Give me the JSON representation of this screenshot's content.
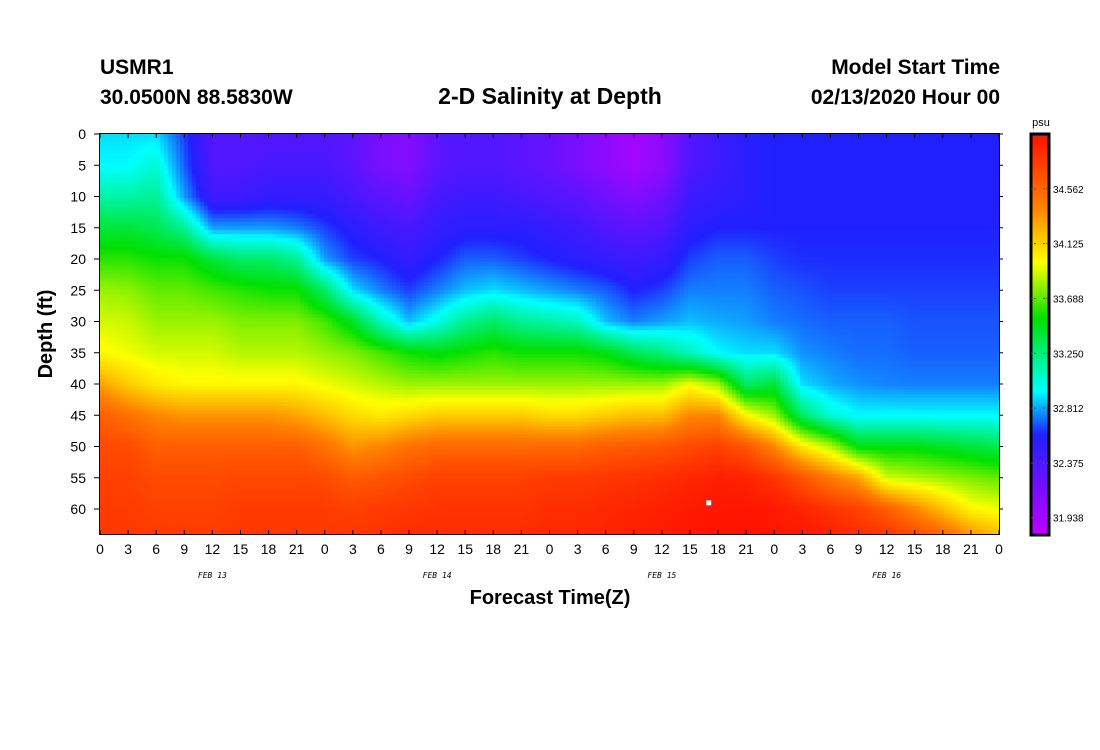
{
  "header": {
    "station": "USMR1",
    "coords": "30.0500N 88.5830W",
    "title": "2-D Salinity at Depth",
    "model_start_label": "Model Start Time",
    "model_start_date": "02/13/2020 Hour 00"
  },
  "chart_data": {
    "type": "heatmap",
    "title": "2-D Salinity at Depth",
    "xlabel": "Forecast Time(Z)",
    "ylabel": "Depth (ft)",
    "x_unit": "hours since model start (02/13/2020 00Z)",
    "xlim": [
      0,
      96
    ],
    "ylim": [
      0,
      64
    ],
    "y_inverted": true,
    "x_ticks": [
      0,
      3,
      6,
      9,
      12,
      15,
      18,
      21,
      24,
      27,
      30,
      33,
      36,
      39,
      42,
      45,
      48,
      51,
      54,
      57,
      60,
      63,
      66,
      69,
      72,
      75,
      78,
      81,
      84,
      87,
      90,
      93,
      96
    ],
    "x_tick_labels": [
      "0",
      "3",
      "6",
      "9",
      "12",
      "15",
      "18",
      "21",
      "0",
      "3",
      "6",
      "9",
      "12",
      "15",
      "18",
      "21",
      "0",
      "3",
      "6",
      "9",
      "12",
      "15",
      "18",
      "21",
      "0",
      "3",
      "6",
      "9",
      "12",
      "15",
      "18",
      "21",
      "0"
    ],
    "day_labels": [
      {
        "x": 12,
        "label": "FEB 13"
      },
      {
        "x": 36,
        "label": "FEB 14"
      },
      {
        "x": 60,
        "label": "FEB 15"
      },
      {
        "x": 84,
        "label": "FEB 16"
      }
    ],
    "y_ticks": [
      0,
      5,
      10,
      15,
      20,
      25,
      30,
      35,
      40,
      45,
      50,
      55,
      60
    ],
    "y_tick_labels": [
      "0",
      "5",
      "10",
      "15",
      "20",
      "25",
      "30",
      "35",
      "40",
      "45",
      "50",
      "55",
      "60"
    ],
    "colorbar": {
      "unit": "psu",
      "min": 31.8,
      "max": 35.0,
      "tick_values": [
        34.562,
        34.125,
        33.688,
        33.25,
        32.812,
        32.375,
        31.938
      ],
      "tick_labels": [
        "34.562",
        "34.125",
        "33.688",
        "33.250",
        "32.812",
        "32.375",
        "31.938"
      ],
      "colors": [
        "#c000ff",
        "#2020ff",
        "#00ffff",
        "#00e000",
        "#ffff00",
        "#ff8000",
        "#ff1000"
      ],
      "stops": [
        0,
        0.25,
        0.36,
        0.54,
        0.68,
        0.82,
        1
      ]
    },
    "profile_times": [
      0,
      3,
      6,
      9,
      12,
      15,
      18,
      21,
      24,
      27,
      30,
      33,
      36,
      39,
      42,
      45,
      48,
      51,
      54,
      57,
      60,
      63,
      66,
      69,
      72,
      75,
      78,
      81,
      84,
      87,
      90,
      93,
      96
    ],
    "profile_depths": [
      0,
      5,
      10,
      15,
      20,
      25,
      30,
      35,
      40,
      45,
      50,
      55,
      60,
      64
    ],
    "salinity_psu": [
      [
        32.9,
        32.95,
        33.15,
        33.4,
        33.6,
        33.8,
        33.9,
        34.0,
        34.3,
        34.6,
        34.7,
        34.75,
        34.78,
        34.8
      ],
      [
        32.9,
        32.95,
        33.15,
        33.4,
        33.6,
        33.78,
        33.88,
        33.95,
        34.15,
        34.5,
        34.7,
        34.75,
        34.78,
        34.8
      ],
      [
        32.9,
        33.05,
        33.2,
        33.35,
        33.55,
        33.7,
        33.8,
        33.9,
        34.05,
        34.4,
        34.6,
        34.7,
        34.75,
        34.78
      ],
      [
        32.65,
        32.7,
        32.8,
        33.2,
        33.55,
        33.7,
        33.8,
        33.9,
        34.0,
        34.35,
        34.6,
        34.7,
        34.75,
        34.78
      ],
      [
        32.35,
        32.35,
        32.45,
        32.8,
        33.4,
        33.65,
        33.8,
        33.9,
        34.0,
        34.35,
        34.6,
        34.7,
        34.75,
        34.78
      ],
      [
        32.35,
        32.35,
        32.45,
        32.8,
        33.3,
        33.6,
        33.75,
        33.85,
        34.0,
        34.35,
        34.6,
        34.72,
        34.78,
        34.8
      ],
      [
        32.35,
        32.4,
        32.5,
        32.8,
        33.3,
        33.55,
        33.75,
        33.85,
        34.0,
        34.35,
        34.6,
        34.72,
        34.78,
        34.8
      ],
      [
        32.35,
        32.4,
        32.5,
        32.75,
        33.2,
        33.55,
        33.75,
        33.85,
        34.0,
        34.3,
        34.6,
        34.72,
        34.78,
        34.8
      ],
      [
        32.35,
        32.4,
        32.5,
        32.65,
        32.8,
        33.3,
        33.65,
        33.8,
        33.95,
        34.2,
        34.5,
        34.7,
        34.78,
        34.8
      ],
      [
        32.3,
        32.3,
        32.4,
        32.55,
        32.65,
        32.9,
        33.45,
        33.75,
        33.9,
        34.1,
        34.35,
        34.62,
        34.75,
        34.8
      ],
      [
        32.15,
        32.15,
        32.3,
        32.45,
        32.6,
        32.75,
        33.1,
        33.65,
        33.85,
        34.05,
        34.4,
        34.65,
        34.78,
        34.82
      ],
      [
        32.1,
        32.1,
        32.25,
        32.4,
        32.5,
        32.65,
        32.85,
        33.55,
        33.8,
        34.1,
        34.5,
        34.7,
        34.8,
        34.85
      ],
      [
        32.3,
        32.3,
        32.4,
        32.5,
        32.6,
        32.75,
        33.0,
        33.5,
        33.8,
        34.15,
        34.55,
        34.75,
        34.82,
        34.85
      ],
      [
        32.35,
        32.35,
        32.45,
        32.55,
        32.7,
        32.85,
        33.2,
        33.55,
        33.8,
        34.15,
        34.55,
        34.75,
        34.82,
        34.85
      ],
      [
        32.35,
        32.35,
        32.45,
        32.55,
        32.7,
        32.9,
        33.3,
        33.6,
        33.8,
        34.15,
        34.55,
        34.75,
        34.82,
        34.85
      ],
      [
        32.3,
        32.3,
        32.4,
        32.55,
        32.65,
        32.85,
        33.2,
        33.55,
        33.8,
        34.15,
        34.55,
        34.75,
        34.82,
        34.85
      ],
      [
        32.25,
        32.25,
        32.35,
        32.5,
        32.6,
        32.8,
        33.15,
        33.55,
        33.8,
        34.1,
        34.55,
        34.78,
        34.85,
        34.88
      ],
      [
        32.15,
        32.15,
        32.3,
        32.45,
        32.55,
        32.75,
        33.1,
        33.55,
        33.8,
        34.1,
        34.55,
        34.78,
        34.85,
        34.88
      ],
      [
        32.05,
        32.05,
        32.2,
        32.35,
        32.5,
        32.7,
        32.85,
        33.5,
        33.8,
        34.15,
        34.6,
        34.8,
        34.88,
        34.9
      ],
      [
        31.95,
        31.95,
        32.1,
        32.3,
        32.45,
        32.6,
        32.75,
        33.35,
        33.8,
        34.2,
        34.62,
        34.82,
        34.9,
        34.92
      ],
      [
        32.05,
        32.05,
        32.2,
        32.35,
        32.5,
        32.65,
        32.8,
        33.25,
        33.8,
        34.2,
        34.65,
        34.85,
        34.92,
        34.95
      ],
      [
        32.35,
        32.35,
        32.45,
        32.55,
        32.65,
        32.75,
        32.85,
        33.1,
        33.95,
        34.4,
        34.7,
        34.88,
        34.95,
        34.97
      ],
      [
        32.45,
        32.45,
        32.5,
        32.6,
        32.7,
        32.75,
        32.82,
        32.95,
        33.8,
        34.4,
        34.75,
        34.92,
        34.97,
        34.98
      ],
      [
        32.55,
        32.55,
        32.55,
        32.6,
        32.7,
        32.75,
        32.8,
        32.9,
        33.3,
        34.0,
        34.65,
        34.9,
        34.97,
        35.0
      ],
      [
        32.6,
        32.6,
        32.6,
        32.6,
        32.65,
        32.7,
        32.75,
        32.9,
        33.4,
        33.8,
        34.4,
        34.82,
        34.95,
        34.97
      ],
      [
        32.6,
        32.6,
        32.6,
        32.6,
        32.62,
        32.68,
        32.72,
        32.78,
        32.9,
        33.3,
        34.05,
        34.65,
        34.9,
        34.95
      ],
      [
        32.6,
        32.6,
        32.6,
        32.6,
        32.62,
        32.65,
        32.7,
        32.75,
        32.82,
        33.05,
        33.85,
        34.45,
        34.82,
        34.92
      ],
      [
        32.6,
        32.6,
        32.6,
        32.6,
        32.62,
        32.65,
        32.7,
        32.72,
        32.78,
        32.95,
        33.5,
        34.3,
        34.75,
        34.85
      ],
      [
        32.6,
        32.6,
        32.6,
        32.6,
        32.62,
        32.65,
        32.7,
        32.72,
        32.76,
        32.95,
        33.5,
        33.9,
        34.6,
        34.8
      ],
      [
        32.6,
        32.6,
        32.6,
        32.6,
        32.62,
        32.65,
        32.68,
        32.7,
        32.75,
        32.95,
        33.5,
        33.85,
        34.4,
        34.7
      ],
      [
        32.6,
        32.6,
        32.6,
        32.6,
        32.62,
        32.65,
        32.68,
        32.7,
        32.75,
        32.95,
        33.45,
        33.8,
        34.2,
        34.55
      ],
      [
        32.6,
        32.6,
        32.6,
        32.6,
        32.62,
        32.65,
        32.68,
        32.7,
        32.75,
        32.95,
        33.4,
        33.75,
        34.0,
        34.35
      ],
      [
        32.6,
        32.6,
        32.6,
        32.6,
        32.62,
        32.65,
        32.68,
        32.7,
        32.75,
        32.95,
        33.35,
        33.7,
        33.95,
        34.2
      ]
    ],
    "marker": {
      "time": 65,
      "depth": 59
    }
  }
}
